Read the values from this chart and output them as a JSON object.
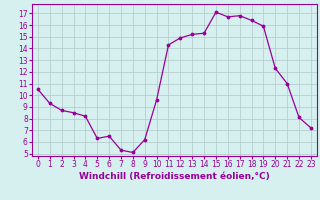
{
  "x": [
    0,
    1,
    2,
    3,
    4,
    5,
    6,
    7,
    8,
    9,
    10,
    11,
    12,
    13,
    14,
    15,
    16,
    17,
    18,
    19,
    20,
    21,
    22,
    23
  ],
  "y": [
    10.5,
    9.3,
    8.7,
    8.5,
    8.2,
    6.3,
    6.5,
    5.3,
    5.1,
    6.2,
    9.6,
    14.3,
    14.9,
    15.2,
    15.3,
    17.1,
    16.7,
    16.8,
    16.4,
    15.9,
    12.3,
    11.0,
    8.1,
    7.2
  ],
  "color": "#990099",
  "background_color": "#d5f0ee",
  "grid_color": "#b0c8c8",
  "xlabel": "Windchill (Refroidissement éolien,°C)",
  "xlim": [
    -0.5,
    23.5
  ],
  "ylim": [
    4.8,
    17.8
  ],
  "yticks": [
    5,
    6,
    7,
    8,
    9,
    10,
    11,
    12,
    13,
    14,
    15,
    16,
    17
  ],
  "xticks": [
    0,
    1,
    2,
    3,
    4,
    5,
    6,
    7,
    8,
    9,
    10,
    11,
    12,
    13,
    14,
    15,
    16,
    17,
    18,
    19,
    20,
    21,
    22,
    23
  ],
  "tick_fontsize": 5.5,
  "xlabel_fontsize": 6.5
}
